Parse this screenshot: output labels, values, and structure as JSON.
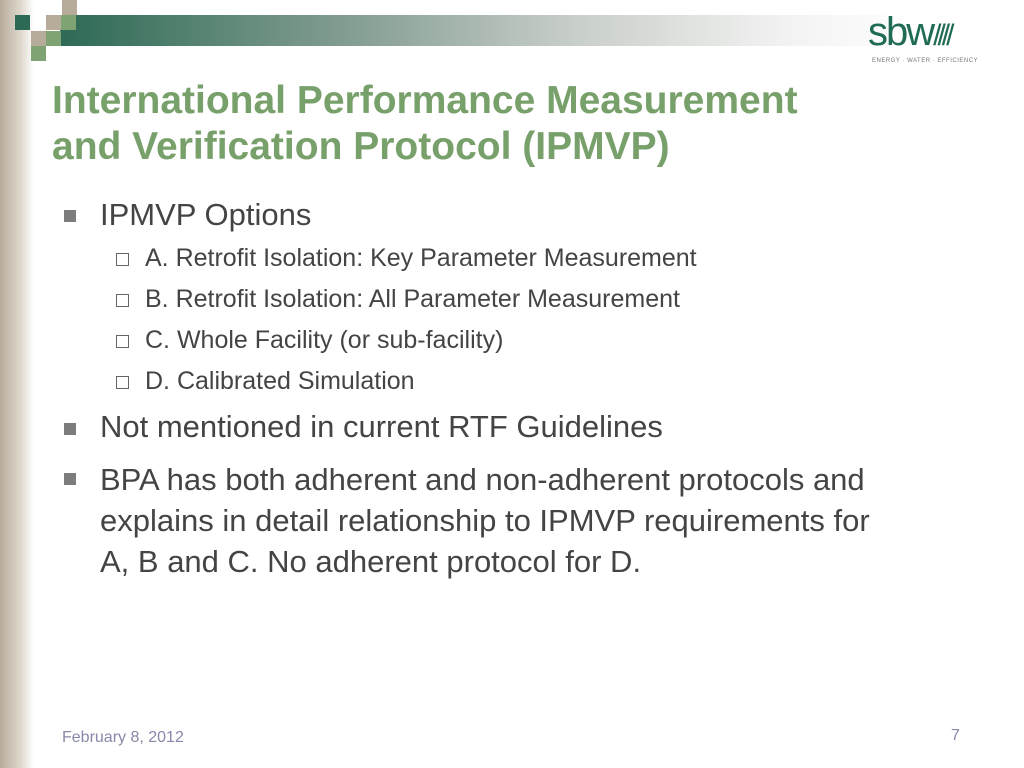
{
  "logo": {
    "text": "sbw",
    "tagline": "ENERGY · WATER · EFFICIENCY"
  },
  "title": [
    "International Performance Measurement",
    "and Verification Protocol (IPMVP)"
  ],
  "bullets": [
    {
      "text": "IPMVP Options",
      "sub": [
        "A. Retrofit Isolation: Key Parameter Measurement",
        "B. Retrofit Isolation: All Parameter Measurement",
        "C. Whole Facility (or sub-facility)",
        "D. Calibrated Simulation"
      ]
    },
    {
      "text": "Not mentioned in current RTF Guidelines"
    },
    {
      "lines": [
        "BPA has both adherent and non-adherent protocols and",
        "explains in detail relationship to IPMVP requirements for",
        "A, B and C.  No adherent protocol for D."
      ]
    }
  ],
  "footer": {
    "date": "February 8, 2012",
    "page": "7"
  },
  "colors": {
    "title": "#77a06a",
    "dark_green": "#2d6a55",
    "tan": "#b7ac9a"
  }
}
